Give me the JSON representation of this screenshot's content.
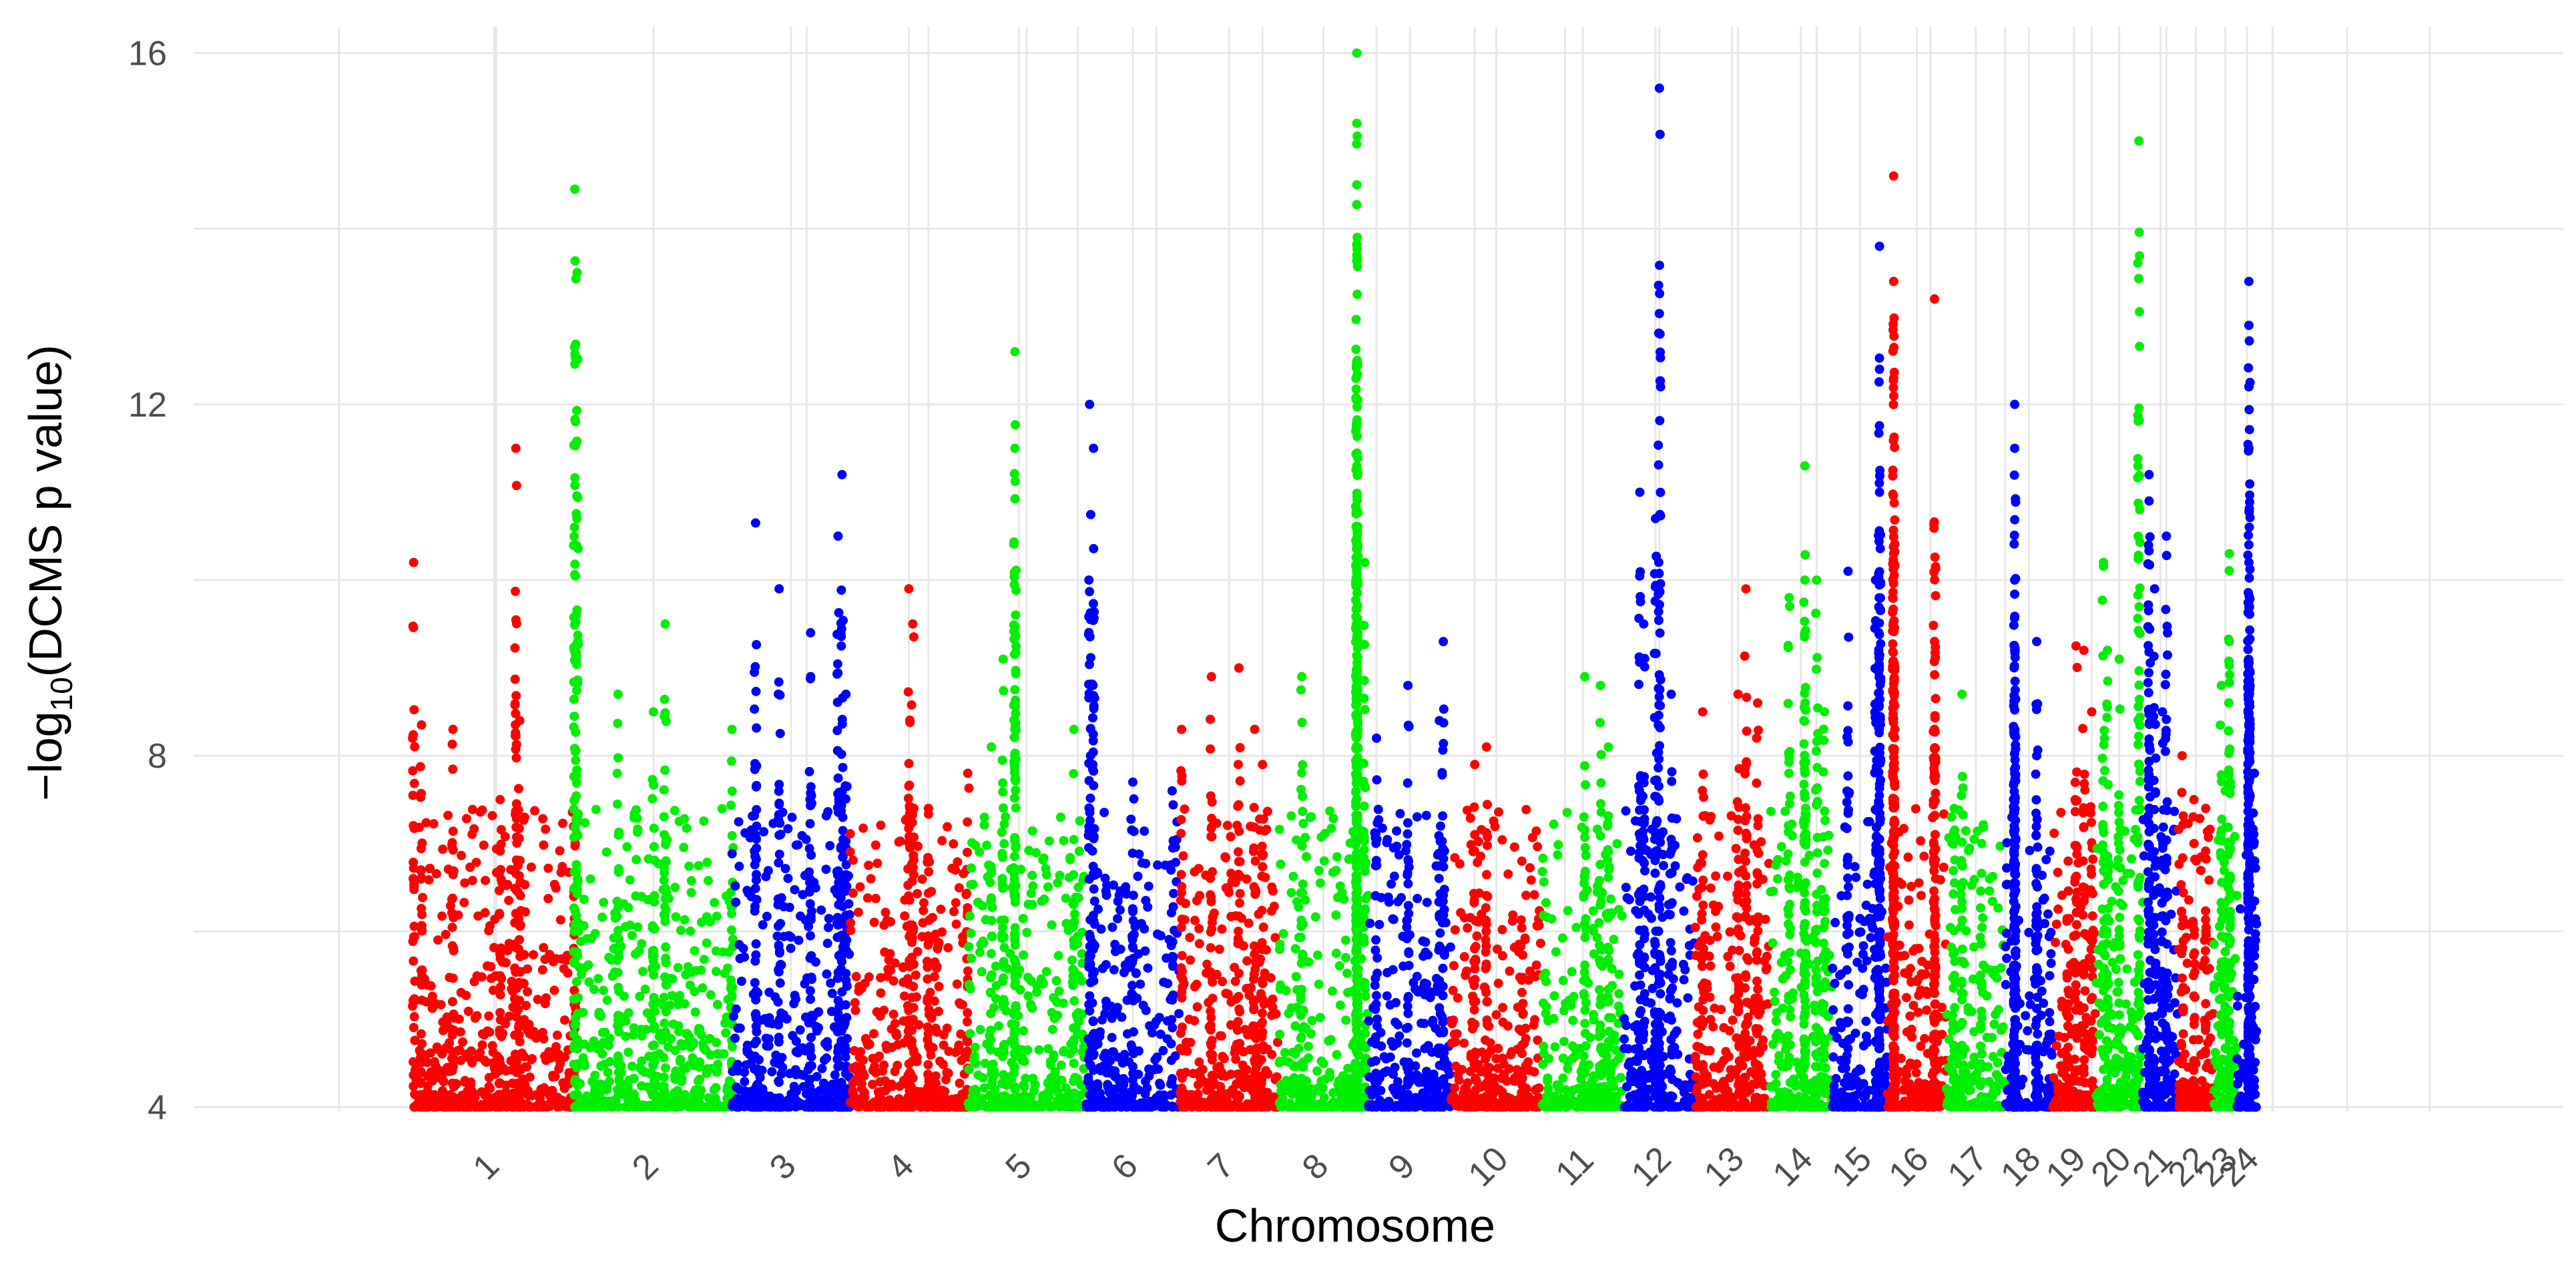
{
  "chart_data": {
    "type": "scatter",
    "subtype": "manhattan",
    "title": "",
    "xlabel": "Chromosome",
    "ylabel_main": "−log",
    "ylabel_sub": "10",
    "ylabel_rest": "(DCMS p value)",
    "ylim": [
      3.95,
      16.3
    ],
    "y_ticks": [
      4,
      8,
      12,
      16
    ],
    "y_tick_labels": [
      "4",
      "8",
      "12",
      "16"
    ],
    "y_minor_ticks": [
      6,
      10,
      14
    ],
    "x_unit": "Mb",
    "x_range": [
      -280,
      2735
    ],
    "x_minor_gridlines": [
      -95,
      105,
      305,
      500,
      655,
      770,
      845,
      945,
      1080,
      1225,
      1350,
      1465,
      1580,
      1685,
      1785,
      1930,
      2025,
      2135,
      2230,
      2365,
      2460,
      2565
    ],
    "colors": [
      "#ff0000",
      "#00ee00",
      "#0000ff"
    ],
    "chromosomes": [
      {
        "label": "1",
        "start": 0,
        "length": 205,
        "color": "#ff0000",
        "peaks": [
          [
            0,
            10.2
          ],
          [
            130,
            11.5
          ],
          [
            135,
            8.4
          ],
          [
            50,
            8.3
          ],
          [
            10,
            8.35
          ],
          [
            205,
            7.5
          ],
          [
            110,
            7.5
          ]
        ]
      },
      {
        "label": "2",
        "start": 205,
        "length": 200,
        "color": "#00ee00",
        "peaks": [
          [
            0,
            14.45
          ],
          [
            3,
            13.5
          ],
          [
            115,
            9.5
          ],
          [
            55,
            8.7
          ],
          [
            100,
            8.5
          ],
          [
            200,
            8.3
          ]
        ]
      },
      {
        "label": "3",
        "start": 405,
        "length": 150,
        "color": "#0000ff",
        "peaks": [
          [
            30,
            10.65
          ],
          [
            60,
            9.9
          ],
          [
            140,
            11.2
          ],
          [
            135,
            10.5
          ],
          [
            100,
            9.4
          ],
          [
            145,
            8.7
          ]
        ]
      },
      {
        "label": "4",
        "start": 555,
        "length": 150,
        "color": "#ff0000",
        "peaks": [
          [
            75,
            9.9
          ],
          [
            80,
            9.5
          ],
          [
            150,
            7.8
          ],
          [
            100,
            7.4
          ]
        ]
      },
      {
        "label": "5",
        "start": 705,
        "length": 150,
        "color": "#00ee00",
        "peaks": [
          [
            60,
            12.6
          ],
          [
            60,
            11.5
          ],
          [
            45,
            9.1
          ],
          [
            135,
            8.3
          ],
          [
            30,
            8.1
          ]
        ]
      },
      {
        "label": "6",
        "start": 855,
        "length": 120,
        "color": "#0000ff",
        "peaks": [
          [
            5,
            12.0
          ],
          [
            10,
            11.5
          ],
          [
            60,
            7.7
          ],
          [
            110,
            7.6
          ]
        ]
      },
      {
        "label": "7",
        "start": 975,
        "length": 125,
        "color": "#ff0000",
        "peaks": [
          [
            2,
            8.3
          ],
          [
            40,
            8.9
          ],
          [
            75,
            9.0
          ],
          [
            95,
            8.3
          ],
          [
            105,
            7.9
          ]
        ]
      },
      {
        "label": "8",
        "start": 1100,
        "length": 115,
        "color": "#00ee00",
        "peaks": [
          [
            100,
            16.0
          ],
          [
            100,
            15.2
          ],
          [
            100,
            14.5
          ],
          [
            100,
            13.7
          ],
          [
            100,
            11.3
          ],
          [
            110,
            10.2
          ],
          [
            30,
            8.9
          ]
        ]
      },
      {
        "label": "9",
        "start": 1215,
        "length": 105,
        "color": "#0000ff",
        "peaks": [
          [
            10,
            8.2
          ],
          [
            50,
            8.8
          ],
          [
            95,
            9.3
          ],
          [
            90,
            8.4
          ]
        ]
      },
      {
        "label": "10",
        "start": 1320,
        "length": 115,
        "color": "#ff0000",
        "peaks": [
          [
            45,
            8.1
          ],
          [
            30,
            7.9
          ],
          [
            90,
            6.8
          ]
        ]
      },
      {
        "label": "11",
        "start": 1435,
        "length": 105,
        "color": "#00ee00",
        "peaks": [
          [
            55,
            8.9
          ],
          [
            75,
            8.8
          ],
          [
            85,
            8.1
          ]
        ]
      },
      {
        "label": "12",
        "start": 1540,
        "length": 90,
        "color": "#0000ff",
        "peaks": [
          [
            45,
            15.6
          ],
          [
            20,
            11.0
          ],
          [
            40,
            10.7
          ],
          [
            25,
            9.5
          ],
          [
            60,
            8.7
          ]
        ]
      },
      {
        "label": "13",
        "start": 1630,
        "length": 95,
        "color": "#ff0000",
        "peaks": [
          [
            65,
            9.9
          ],
          [
            55,
            8.7
          ],
          [
            80,
            8.6
          ],
          [
            10,
            8.5
          ]
        ]
      },
      {
        "label": "14",
        "start": 1725,
        "length": 80,
        "color": "#00ee00",
        "peaks": [
          [
            45,
            11.3
          ],
          [
            45,
            10.0
          ],
          [
            60,
            10.0
          ],
          [
            25,
            9.8
          ],
          [
            70,
            8.5
          ]
        ]
      },
      {
        "label": "15",
        "start": 1805,
        "length": 70,
        "color": "#0000ff",
        "peaks": [
          [
            60,
            13.8
          ],
          [
            60,
            12.4
          ],
          [
            60,
            11.0
          ],
          [
            55,
            10.0
          ],
          [
            20,
            10.1
          ]
        ]
      },
      {
        "label": "16",
        "start": 1875,
        "length": 75,
        "color": "#ff0000",
        "peaks": [
          [
            8,
            14.6
          ],
          [
            8,
            13.4
          ],
          [
            8,
            12.3
          ],
          [
            8,
            10.3
          ],
          [
            60,
            13.2
          ],
          [
            60,
            9.3
          ],
          [
            60,
            8.3
          ]
        ]
      },
      {
        "label": "17",
        "start": 1950,
        "length": 75,
        "color": "#00ee00",
        "peaks": [
          [
            20,
            8.7
          ],
          [
            10,
            7.4
          ],
          [
            45,
            7.0
          ]
        ]
      },
      {
        "label": "18",
        "start": 2025,
        "length": 60,
        "color": "#0000ff",
        "peaks": [
          [
            12,
            12.0
          ],
          [
            12,
            11.5
          ],
          [
            12,
            10.0
          ],
          [
            12,
            9.2
          ],
          [
            40,
            9.3
          ],
          [
            40,
            8.0
          ]
        ]
      },
      {
        "label": "19",
        "start": 2085,
        "length": 55,
        "color": "#ff0000",
        "peaks": [
          [
            40,
            9.2
          ],
          [
            30,
            9.25
          ],
          [
            50,
            8.5
          ],
          [
            20,
            6.8
          ]
        ]
      },
      {
        "label": "20",
        "start": 2140,
        "length": 60,
        "color": "#00ee00",
        "peaks": [
          [
            55,
            15.0
          ],
          [
            10,
            10.2
          ],
          [
            15,
            9.2
          ],
          [
            30,
            9.1
          ]
        ]
      },
      {
        "label": "21",
        "start": 2200,
        "length": 45,
        "color": "#0000ff",
        "peaks": [
          [
            8,
            11.2
          ],
          [
            8,
            10.9
          ],
          [
            30,
            10.5
          ],
          [
            15,
            9.9
          ],
          [
            25,
            8.5
          ]
        ]
      },
      {
        "label": "22",
        "start": 2245,
        "length": 45,
        "color": "#ff0000",
        "peaks": [
          [
            5,
            8.0
          ],
          [
            20,
            7.5
          ],
          [
            35,
            7.4
          ]
        ]
      },
      {
        "label": "23",
        "start": 2290,
        "length": 30,
        "color": "#00ee00",
        "peaks": [
          [
            20,
            10.3
          ],
          [
            20,
            9.3
          ],
          [
            10,
            8.8
          ],
          [
            15,
            7.6
          ]
        ]
      },
      {
        "label": "24",
        "start": 2320,
        "length": 25,
        "color": "#0000ff",
        "peaks": [
          [
            15,
            13.4
          ],
          [
            15,
            12.9
          ],
          [
            15,
            12.2
          ],
          [
            15,
            11.5
          ],
          [
            15,
            10.2
          ],
          [
            22,
            7.8
          ]
        ]
      }
    ]
  }
}
